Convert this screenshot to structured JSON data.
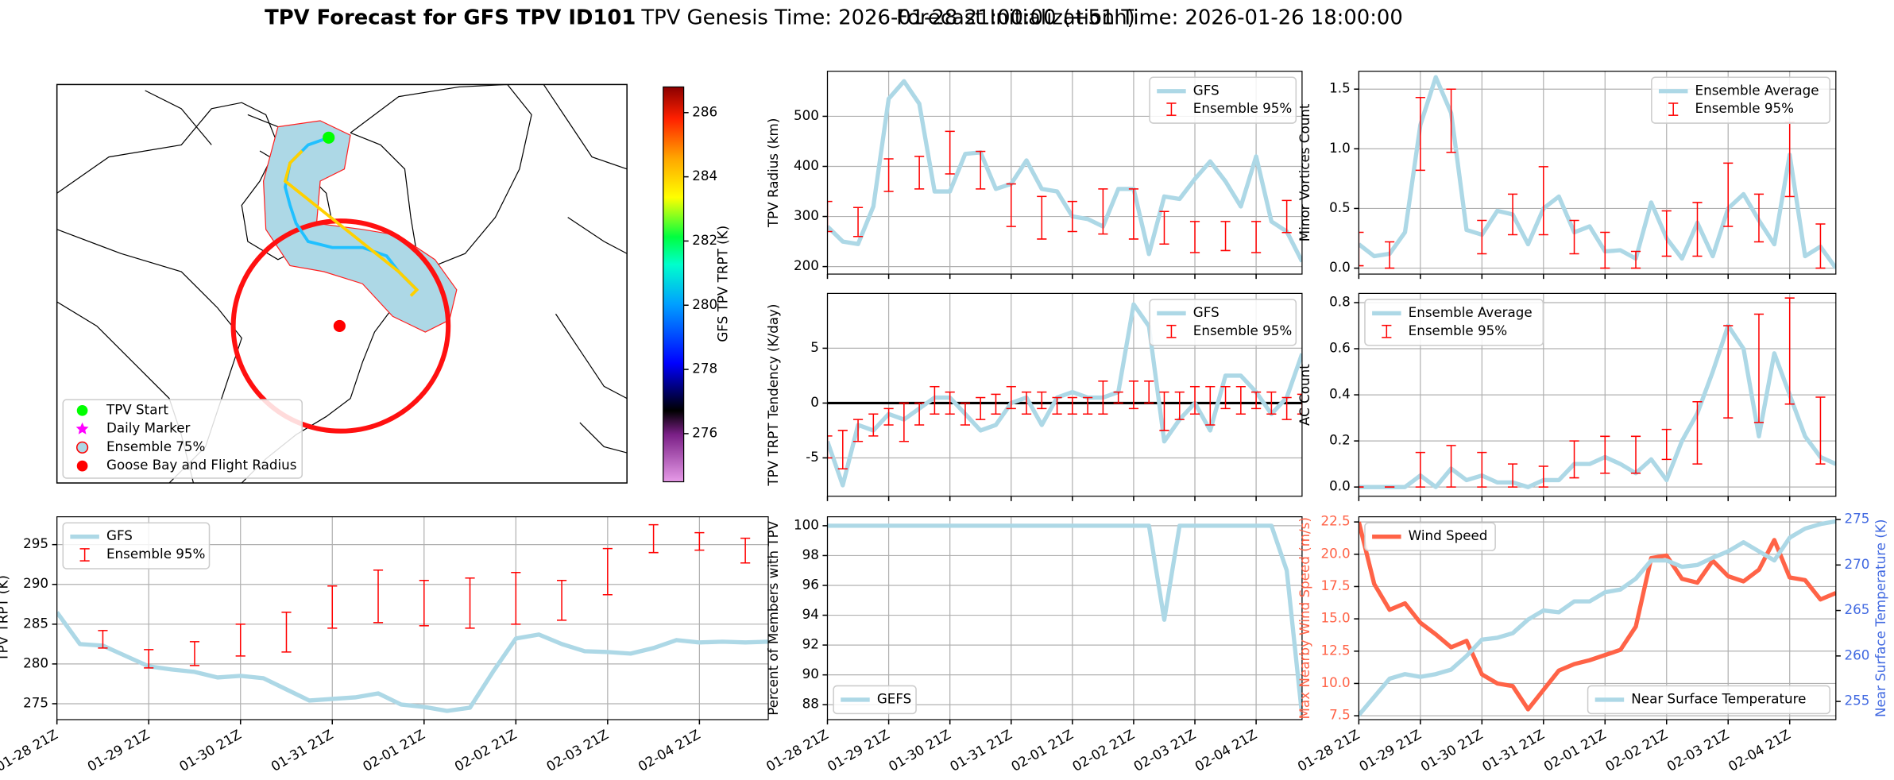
{
  "suptitle": [
    "TPV Forecast for GFS TPV ID101",
    "TPV Genesis Time: 2026-01-28 21:00:00 (+51h)",
    "Forecast Initialization Time: 2026-01-26 18:00:00"
  ],
  "chart_data": [
    {
      "type": "map",
      "colorbar": {
        "label": "GFS TPV TRPT (K)",
        "lim": [
          274.5,
          286.8
        ],
        "ticks": [
          276,
          278,
          280,
          282,
          284,
          286
        ]
      },
      "legend": [
        {
          "label": "TPV Start",
          "color": "#00ff00",
          "marker": "circle"
        },
        {
          "label": "Daily Marker",
          "color": "#ff00ff",
          "marker": "star"
        },
        {
          "label": "Ensemble 75%",
          "color": "#add8e6",
          "marker": "circle-edge"
        },
        {
          "label": "Goose Bay and Flight Radius",
          "color": "#ff0000",
          "marker": "circle"
        }
      ]
    },
    {
      "type": "line",
      "ylabel": "TPV TRPT (K)",
      "grid": true,
      "legend": "upper left",
      "categories": [
        "01-28 21Z",
        null,
        null,
        null,
        "01-29 21Z",
        null,
        null,
        null,
        "01-30 21Z",
        null,
        null,
        null,
        "01-31 21Z",
        null,
        null,
        null,
        "02-01 21Z",
        null,
        null,
        null,
        "02-02 21Z",
        null,
        null,
        null,
        "02-03 21Z",
        null,
        null,
        null,
        "02-04 21Z",
        null,
        null,
        null
      ],
      "ylim": [
        273,
        298.5
      ],
      "yticks": [
        275,
        280,
        285,
        290,
        295
      ],
      "series": [
        {
          "name": "GFS",
          "color": "#add8e6",
          "values": [
            286.5,
            282.5,
            282.3,
            281,
            279.7,
            279.3,
            279,
            278.3,
            278.5,
            278.2,
            276.8,
            275.4,
            275.6,
            275.8,
            276.3,
            274.9,
            274.6,
            274.1,
            274.5,
            279,
            283.2,
            283.7,
            282.5,
            281.6,
            281.5,
            281.3,
            282,
            283,
            282.7,
            282.8,
            282.7,
            282.8
          ]
        },
        {
          "name": "Ensemble 95%",
          "color": "#ff0000",
          "kind": "errorbar",
          "low": [
            null,
            null,
            282,
            null,
            279.5,
            null,
            279.8,
            null,
            281,
            null,
            281.5,
            null,
            284.5,
            null,
            285.2,
            null,
            284.8,
            null,
            284.5,
            null,
            285,
            null,
            285.5,
            null,
            288.7,
            null,
            294,
            null,
            294.3,
            null,
            292.7,
            null
          ],
          "high": [
            null,
            null,
            284.2,
            null,
            281.8,
            null,
            282.8,
            null,
            285,
            null,
            286.5,
            null,
            289.8,
            null,
            291.8,
            null,
            290.5,
            null,
            290.8,
            null,
            291.5,
            null,
            290.5,
            null,
            294.5,
            null,
            297.5,
            null,
            296.5,
            null,
            295.8,
            null
          ]
        }
      ]
    },
    {
      "type": "line",
      "ylabel": "TPV Radius (km)",
      "grid": true,
      "legend": "upper right",
      "categories": [
        null,
        null,
        null,
        null,
        null,
        null,
        null,
        null,
        null,
        null,
        null,
        null,
        null,
        null,
        null,
        null,
        null,
        null,
        null,
        null,
        null,
        null,
        null,
        null,
        null,
        null,
        null,
        null,
        null,
        null,
        null,
        null
      ],
      "ylim": [
        185,
        590
      ],
      "yticks": [
        200,
        300,
        400,
        500
      ],
      "series": [
        {
          "name": "GFS",
          "color": "#add8e6",
          "values": [
            280,
            250,
            245,
            320,
            535,
            570,
            525,
            350,
            350,
            425,
            428,
            355,
            365,
            412,
            355,
            350,
            300,
            295,
            280,
            355,
            355,
            225,
            340,
            335,
            375,
            410,
            370,
            320,
            420,
            290,
            270,
            210
          ]
        },
        {
          "name": "Ensemble 95%",
          "color": "#ff0000",
          "kind": "errorbar",
          "low": [
            270,
            null,
            260,
            null,
            350,
            null,
            355,
            null,
            385,
            null,
            355,
            null,
            280,
            null,
            255,
            null,
            270,
            null,
            265,
            null,
            255,
            null,
            245,
            null,
            228,
            null,
            232,
            null,
            228,
            null,
            268,
            null
          ],
          "high": [
            330,
            null,
            318,
            null,
            415,
            null,
            420,
            null,
            470,
            null,
            430,
            null,
            365,
            null,
            340,
            null,
            330,
            null,
            355,
            null,
            355,
            null,
            310,
            null,
            290,
            null,
            290,
            null,
            290,
            null,
            332,
            null
          ]
        }
      ]
    },
    {
      "type": "line",
      "ylabel": "Minor Vortices Count",
      "grid": true,
      "legend": "upper right",
      "categories": [
        null,
        null,
        null,
        null,
        null,
        null,
        null,
        null,
        null,
        null,
        null,
        null,
        null,
        null,
        null,
        null,
        null,
        null,
        null,
        null,
        null,
        null,
        null,
        null,
        null,
        null,
        null,
        null,
        null,
        null,
        null,
        null
      ],
      "ylim": [
        -0.05,
        1.65
      ],
      "yticks": [
        {
          "value": 0,
          "label": "0.0"
        },
        0.5,
        {
          "value": 1,
          "label": "1.0"
        },
        1.5
      ],
      "series": [
        {
          "name": "Ensemble Average",
          "color": "#add8e6",
          "values": [
            0.2,
            0.1,
            0.12,
            0.3,
            1.2,
            1.6,
            1.3,
            0.32,
            0.28,
            0.48,
            0.45,
            0.2,
            0.5,
            0.6,
            0.3,
            0.35,
            0.14,
            0.15,
            0.08,
            0.55,
            0.25,
            0.08,
            0.38,
            0.1,
            0.5,
            0.62,
            0.4,
            0.2,
            0.95,
            0.1,
            0.18,
            0
          ]
        },
        {
          "name": "Ensemble 95%",
          "color": "#ff0000",
          "kind": "errorbar",
          "low": [
            0.02,
            null,
            0,
            null,
            0.82,
            null,
            0.97,
            null,
            0.12,
            null,
            0.28,
            null,
            0.28,
            null,
            0.12,
            null,
            0,
            null,
            0,
            null,
            0.1,
            null,
            0.1,
            null,
            0.35,
            null,
            0.22,
            null,
            0.6,
            null,
            0,
            null
          ],
          "high": [
            0.3,
            null,
            0.22,
            null,
            1.43,
            null,
            1.5,
            null,
            0.4,
            null,
            0.62,
            null,
            0.85,
            null,
            0.4,
            null,
            0.3,
            null,
            0.14,
            null,
            0.48,
            null,
            0.55,
            null,
            0.88,
            null,
            0.62,
            null,
            1.22,
            null,
            0.37,
            null
          ]
        }
      ]
    },
    {
      "type": "line",
      "ylabel": "TPV TRPT Tendency (K/day)",
      "grid": true,
      "legend": "upper right",
      "reference_line": 0,
      "categories": [
        null,
        null,
        null,
        null,
        null,
        null,
        null,
        null,
        null,
        null,
        null,
        null,
        null,
        null,
        null,
        null,
        null,
        null,
        null,
        null,
        null,
        null,
        null,
        null,
        null,
        null,
        null,
        null,
        null,
        null,
        null,
        null
      ],
      "ylim": [
        -8.5,
        10
      ],
      "yticks": [
        -5,
        0,
        5
      ],
      "series": [
        {
          "name": "GFS",
          "color": "#add8e6",
          "values": [
            -3.5,
            -7.5,
            -2,
            -2.5,
            -1,
            -1.5,
            -0.5,
            0.5,
            0.5,
            -1,
            -2.5,
            -2,
            0,
            0.5,
            -2,
            0.5,
            1,
            0.5,
            0.5,
            1,
            9,
            7,
            -3.5,
            -1.5,
            0,
            -2.5,
            2.5,
            2.5,
            1,
            -1,
            0.5,
            4.5
          ]
        },
        {
          "name": "Ensemble 95%",
          "color": "#ff0000",
          "kind": "errorbar",
          "low": [
            -5,
            -6,
            -3.5,
            -3,
            -2,
            -3.5,
            -2,
            -1,
            -1,
            -2,
            -1.5,
            -1,
            -0.5,
            -1,
            -0.5,
            -1,
            -1,
            -1,
            -1,
            0,
            -0.5,
            0,
            -2.5,
            -1.5,
            -1,
            -2,
            -0.5,
            -1,
            -0.5,
            -1,
            -1.5,
            -1
          ],
          "high": [
            -3,
            -2.5,
            -1.5,
            -1,
            -0.5,
            0,
            0,
            1.5,
            1,
            0,
            0.5,
            0.8,
            1.5,
            1,
            1,
            0.5,
            0.5,
            0.5,
            2,
            1,
            2,
            2,
            1,
            1,
            1.5,
            1.5,
            1.5,
            1.5,
            1,
            1,
            0.5,
            0.8
          ]
        }
      ]
    },
    {
      "type": "line",
      "ylabel": "AC Count",
      "grid": true,
      "legend": "upper left",
      "categories": [
        null,
        null,
        null,
        null,
        null,
        null,
        null,
        null,
        null,
        null,
        null,
        null,
        null,
        null,
        null,
        null,
        null,
        null,
        null,
        null,
        null,
        null,
        null,
        null,
        null,
        null,
        null,
        null,
        null,
        null,
        null,
        null
      ],
      "ylim": [
        -0.04,
        0.84
      ],
      "yticks": [
        {
          "value": 0,
          "label": "0.0"
        },
        0.2,
        0.4,
        0.6,
        0.8
      ],
      "series": [
        {
          "name": "Ensemble Average",
          "color": "#add8e6",
          "values": [
            0,
            0,
            0,
            0,
            0.05,
            0,
            0.08,
            0.03,
            0.05,
            0.02,
            0.02,
            0,
            0.03,
            0.03,
            0.1,
            0.1,
            0.13,
            0.1,
            0.06,
            0.12,
            0.03,
            0.2,
            0.32,
            0.5,
            0.7,
            0.6,
            0.22,
            0.58,
            0.4,
            0.22,
            0.13,
            0.1
          ]
        },
        {
          "name": "Ensemble 95%",
          "color": "#ff0000",
          "kind": "errorbar",
          "low": [
            0,
            null,
            0,
            null,
            0,
            null,
            0,
            null,
            0,
            null,
            0,
            null,
            0,
            null,
            0.04,
            null,
            0.06,
            null,
            0.06,
            null,
            0.12,
            null,
            0.1,
            null,
            0.3,
            null,
            0.28,
            null,
            0.36,
            null,
            0.1,
            null
          ],
          "high": [
            0,
            null,
            0,
            null,
            0.15,
            null,
            0.18,
            null,
            0.15,
            null,
            0.1,
            null,
            0.09,
            null,
            0.2,
            null,
            0.22,
            null,
            0.22,
            null,
            0.25,
            null,
            0.37,
            null,
            0.7,
            null,
            0.75,
            null,
            0.82,
            null,
            0.39,
            null
          ]
        }
      ]
    },
    {
      "type": "line",
      "ylabel": "Percent of Members with TPV",
      "grid": true,
      "legend": "lower left",
      "categories": [
        "01-28 21Z",
        null,
        null,
        null,
        "01-29 21Z",
        null,
        null,
        null,
        "01-30 21Z",
        null,
        null,
        null,
        "01-31 21Z",
        null,
        null,
        null,
        "02-01 21Z",
        null,
        null,
        null,
        "02-02 21Z",
        null,
        null,
        null,
        "02-03 21Z",
        null,
        null,
        null,
        "02-04 21Z",
        null,
        null,
        null
      ],
      "ylim": [
        87,
        100.6
      ],
      "yticks": [
        88,
        90,
        92,
        94,
        96,
        98,
        100
      ],
      "series": [
        {
          "name": "GEFS",
          "color": "#add8e6",
          "values": [
            100,
            100,
            100,
            100,
            100,
            100,
            100,
            100,
            100,
            100,
            100,
            100,
            100,
            100,
            100,
            100,
            100,
            100,
            100,
            100,
            100,
            100,
            93.7,
            100,
            100,
            100,
            100,
            100,
            100,
            100,
            97,
            87.3
          ]
        }
      ]
    },
    {
      "type": "line",
      "ylabel": "Max Nearby Wind Speed (m/s)",
      "y2label": "Near Surface Temperature (K)",
      "grid": true,
      "legend": "upper left",
      "legend2": "lower right",
      "y_color": "#ff6347",
      "y2_color": "#4169e1",
      "categories": [
        "01-28 21Z",
        null,
        null,
        null,
        "01-29 21Z",
        null,
        null,
        null,
        "01-30 21Z",
        null,
        null,
        null,
        "01-31 21Z",
        null,
        null,
        null,
        "02-01 21Z",
        null,
        null,
        null,
        "02-02 21Z",
        null,
        null,
        null,
        "02-03 21Z",
        null,
        null,
        null,
        "02-04 21Z",
        null,
        null,
        null
      ],
      "ylim": [
        7.2,
        22.9
      ],
      "yticks": [
        7.5,
        {
          "value": 10,
          "label": "10.0"
        },
        12.5,
        {
          "value": 15,
          "label": "15.0"
        },
        17.5,
        {
          "value": 20,
          "label": "20.0"
        },
        22.5
      ],
      "y2lim": [
        253,
        275.3
      ],
      "y2ticks": [
        255,
        260,
        265,
        270,
        275
      ],
      "series": [
        {
          "name": "Wind Speed",
          "color": "#ff6347",
          "values": [
            22.5,
            17.7,
            15.7,
            16.2,
            14.7,
            13.8,
            12.8,
            13.3,
            10.7,
            10,
            9.8,
            8,
            9.5,
            11,
            11.5,
            11.8,
            12.2,
            12.6,
            14.4,
            19.7,
            19.9,
            18.1,
            17.8,
            19.5,
            18.3,
            17.9,
            18.8,
            21.1,
            18.2,
            18,
            16.5,
            17
          ]
        },
        {
          "name": "Near Surface Temperature",
          "color": "#add8e6",
          "axis": "y2",
          "values": [
            253.5,
            255.5,
            257.5,
            258,
            257.7,
            258,
            258.5,
            260,
            261.8,
            262,
            262.5,
            264,
            265,
            264.8,
            266,
            266,
            267,
            267.3,
            268.5,
            270.5,
            270.5,
            269.8,
            270,
            270.8,
            271.5,
            272.5,
            271.5,
            270.5,
            273,
            274,
            274.5,
            274.8
          ]
        }
      ]
    }
  ]
}
